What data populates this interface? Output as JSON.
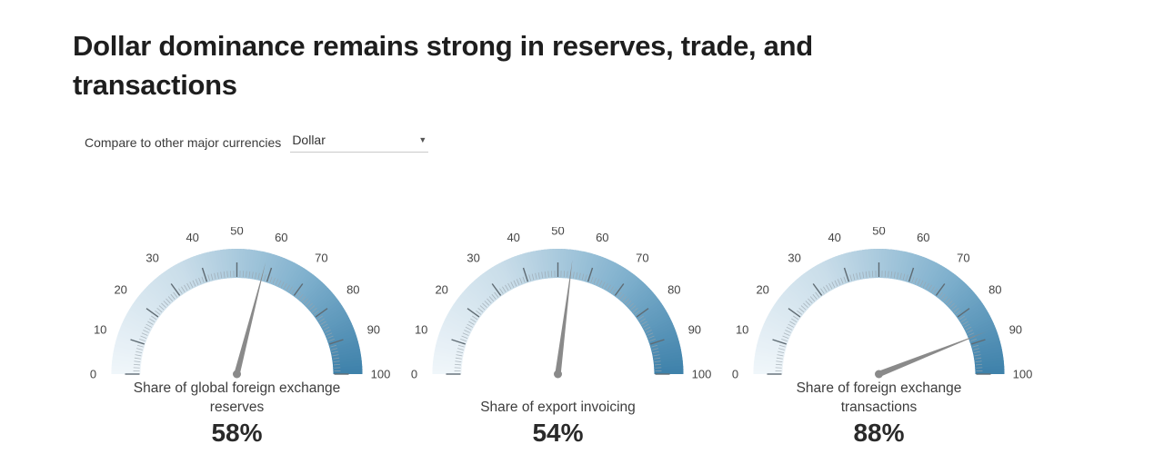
{
  "title": "Dollar dominance remains strong in reserves, trade, and transactions",
  "controls": {
    "compare_label": "Compare to other major currencies",
    "selected_currency": "Dollar",
    "dropdown_caret": "▼"
  },
  "chart_data": {
    "type": "gauge",
    "min": 0,
    "max": 100,
    "ticks": [
      0,
      10,
      20,
      30,
      40,
      50,
      60,
      70,
      80,
      90,
      100
    ],
    "gauges": [
      {
        "label": "Share of global foreign exchange reserves",
        "value": 58,
        "display": "58%"
      },
      {
        "label": "Share of export invoicing",
        "value": 54,
        "display": "54%"
      },
      {
        "label": "Share of foreign exchange transactions",
        "value": 88,
        "display": "88%"
      }
    ],
    "colors": {
      "arc_gradient": [
        "#f0f6fa",
        "#c9dde9",
        "#7fb0cd",
        "#3e81aa"
      ],
      "needle": "#8a8a8a",
      "tick_minor": "#9aa5ad",
      "tick_major": "#5f6b73",
      "tick_label": "#444444"
    }
  }
}
